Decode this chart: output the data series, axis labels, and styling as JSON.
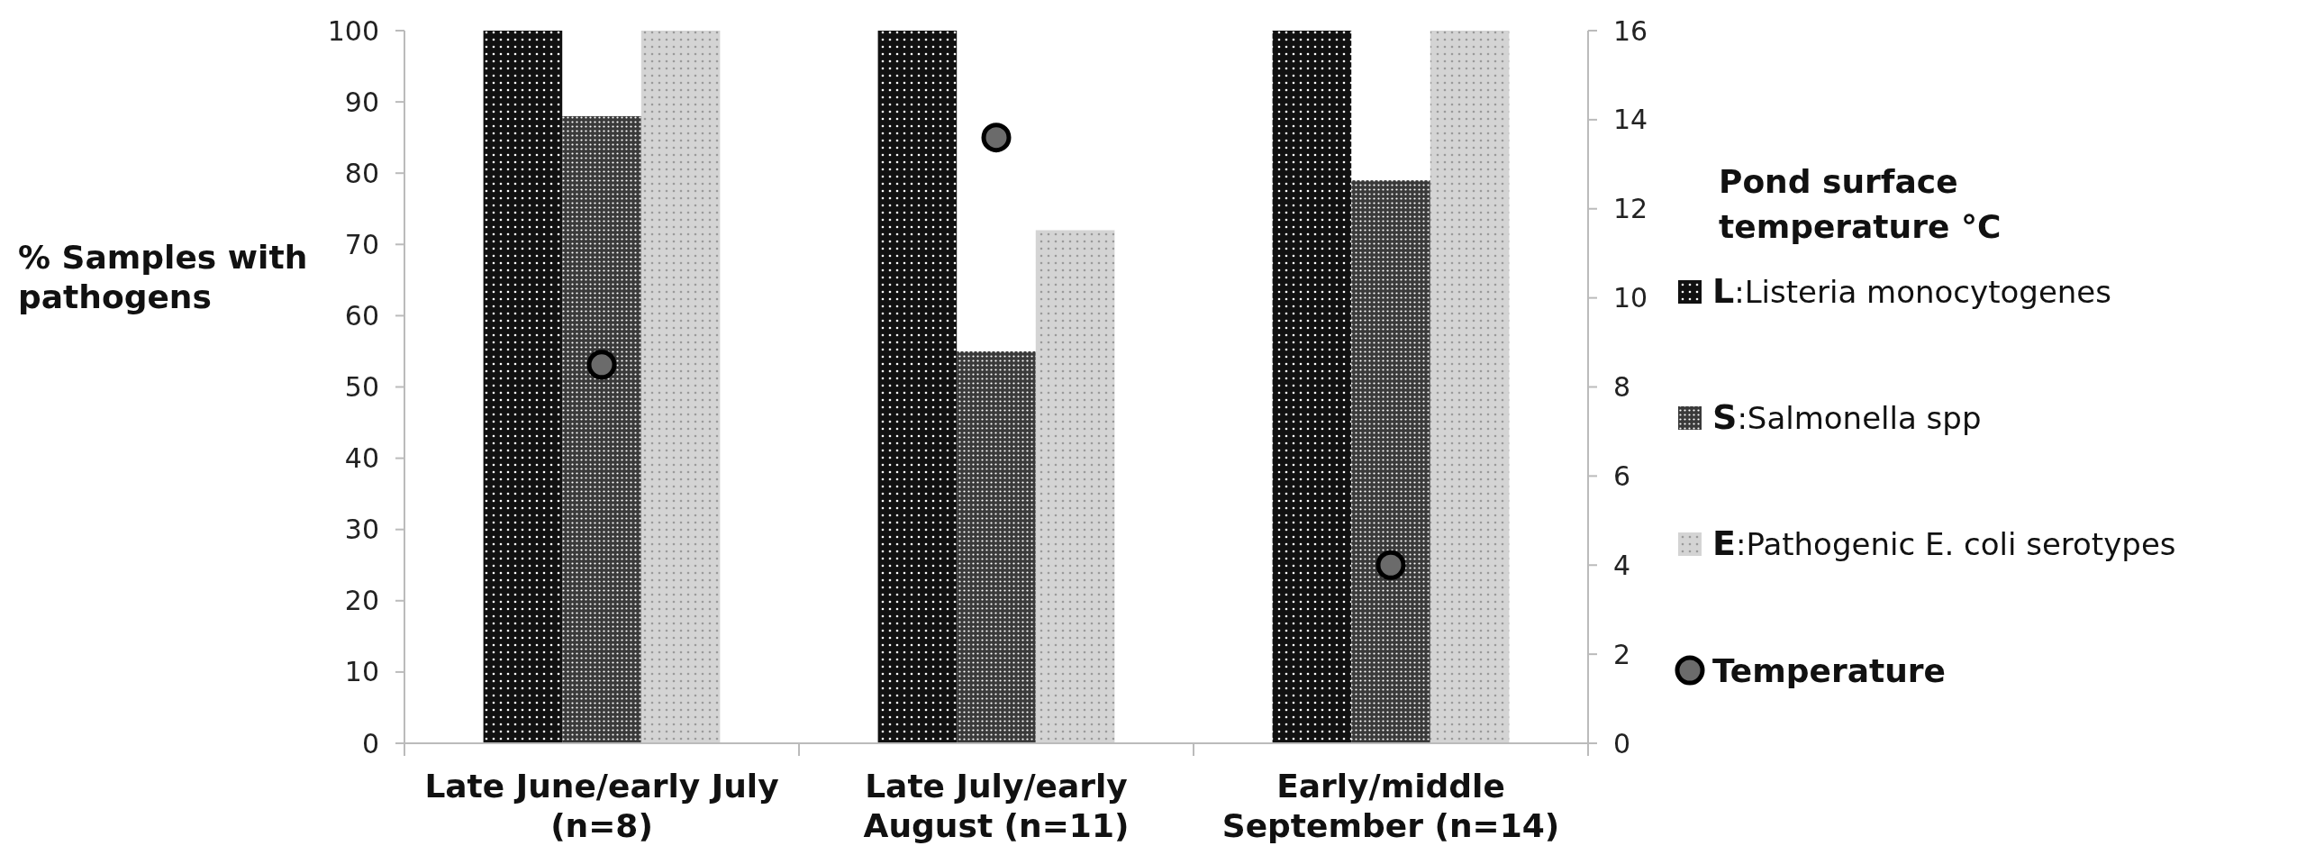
{
  "chart_data": {
    "type": "bar",
    "categories": [
      "Late June/early July (n=8)",
      "Late July/early August (n=11)",
      "Early/middle September (n=14)"
    ],
    "ylabel": "% Samples with pathogens",
    "y2label": "Pond surface temperature °C",
    "ylim": [
      0,
      100
    ],
    "yticks": [
      0,
      10,
      20,
      30,
      40,
      50,
      60,
      70,
      80,
      90,
      100
    ],
    "y2lim": [
      0,
      16
    ],
    "y2ticks": [
      0,
      2,
      4,
      6,
      8,
      10,
      12,
      14,
      16
    ],
    "series": [
      {
        "name": "L:Listeria monocytogenes",
        "color": "#111111",
        "values": [
          100,
          100,
          100
        ]
      },
      {
        "name": "S:Salmonella spp",
        "color": "#3a3a3a",
        "values": [
          88,
          55,
          79
        ]
      },
      {
        "name": "E:Pathogenic E. coli serotypes",
        "color": "#d4d4d4",
        "values": [
          100,
          72,
          100
        ]
      },
      {
        "name": "Temperature",
        "type": "scatter",
        "axis": "y2",
        "color": "#6b6b6b",
        "marker": "circle",
        "values": [
          8.5,
          13.6,
          4.0
        ]
      }
    ],
    "legend": "right",
    "grid": false
  }
}
